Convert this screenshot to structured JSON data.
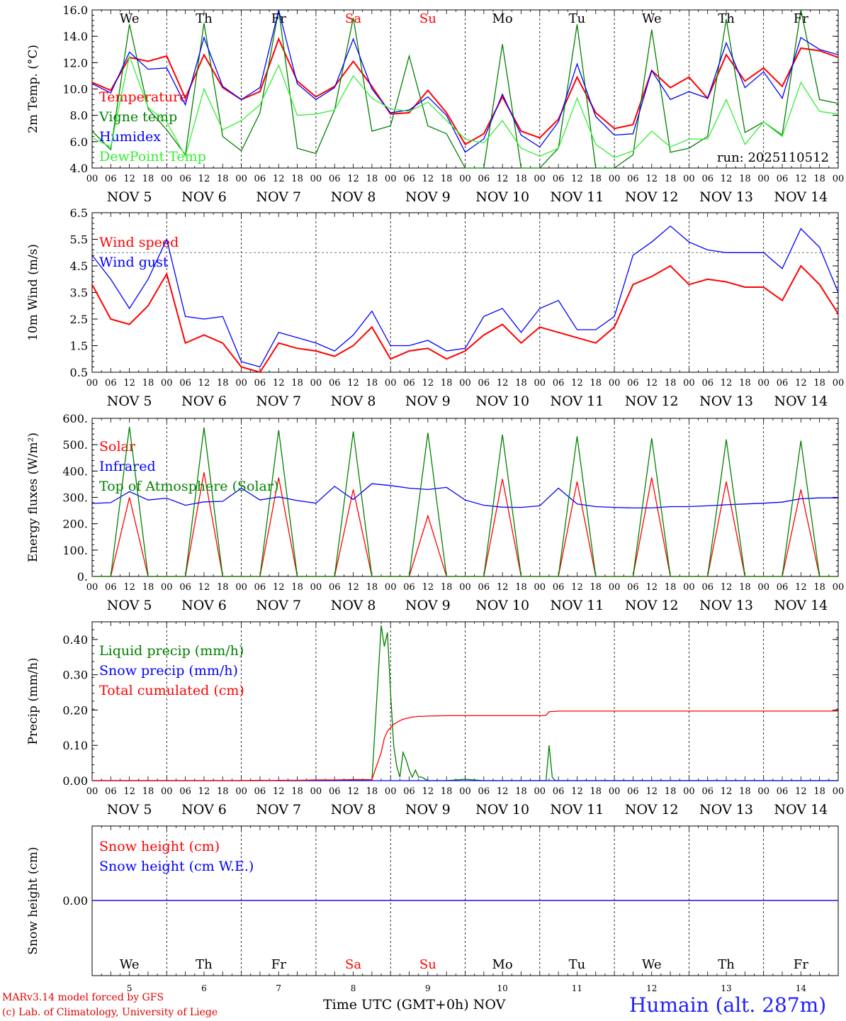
{
  "chart_data": [
    {
      "type": "line",
      "ylabel": "2m Temp. (°C)",
      "ylim": [
        4.0,
        16.0
      ],
      "yticks": [
        "4.0",
        "6.0",
        "8.0",
        "10.0",
        "12.0",
        "14.0",
        "16.0"
      ],
      "annotation": "run: 2025110512",
      "x": [
        0,
        6,
        12,
        18,
        24,
        30,
        36,
        42,
        48,
        54,
        60,
        66,
        72,
        78,
        84,
        90,
        96,
        102,
        108,
        114,
        120,
        126,
        132,
        138,
        144,
        150,
        156,
        162,
        168,
        174,
        180,
        186,
        192,
        198,
        204,
        210,
        216,
        222,
        228,
        234,
        240
      ],
      "series": [
        {
          "name": "Temperature",
          "color": "#ff0000",
          "values": [
            10.5,
            9.9,
            12.4,
            12.1,
            12.5,
            9.3,
            12.6,
            10.1,
            9.2,
            9.8,
            13.8,
            10.6,
            9.4,
            10.2,
            12.1,
            10.2,
            8.1,
            8.2,
            9.9,
            8.2,
            5.8,
            6.6,
            9.4,
            6.8,
            6.3,
            7.7,
            10.9,
            8.2,
            7.0,
            7.3,
            11.4,
            10.1,
            10.9,
            9.3,
            12.6,
            10.6,
            11.6,
            10.2,
            13.1,
            12.9,
            12.4
          ]
        },
        {
          "name": "Vigne temp",
          "color": "#008000",
          "values": [
            6.8,
            5.4,
            14.9,
            8.5,
            6.9,
            5.0,
            15.0,
            6.4,
            5.3,
            8.2,
            16.0,
            5.5,
            5.1,
            8.4,
            15.4,
            6.8,
            7.2,
            12.5,
            7.2,
            6.6,
            4.0,
            4.0,
            13.4,
            4.0,
            4.0,
            5.5,
            14.9,
            4.0,
            4.0,
            5.0,
            14.5,
            5.2,
            5.5,
            6.4,
            15.3,
            6.7,
            7.5,
            6.5,
            16.0,
            9.2,
            8.9
          ]
        },
        {
          "name": "Humidex",
          "color": "#0000ff",
          "values": [
            10.4,
            9.7,
            12.8,
            11.5,
            11.6,
            8.8,
            13.9,
            10.2,
            9.2,
            10.1,
            16.0,
            10.4,
            9.2,
            10.1,
            13.8,
            10.0,
            8.2,
            8.4,
            9.4,
            8.0,
            5.2,
            6.2,
            9.6,
            6.5,
            5.6,
            7.5,
            11.9,
            7.9,
            6.5,
            6.6,
            11.4,
            9.2,
            9.8,
            9.3,
            13.5,
            10.1,
            11.3,
            9.3,
            13.9,
            13.0,
            12.6
          ]
        },
        {
          "name": "DewPoint Temp",
          "color": "#33ee33",
          "values": [
            6.3,
            5.6,
            12.5,
            8.6,
            7.5,
            4.9,
            10.0,
            6.9,
            7.6,
            8.8,
            11.8,
            8.0,
            8.1,
            8.4,
            11.0,
            9.3,
            8.5,
            8.3,
            9.0,
            7.6,
            6.2,
            5.9,
            7.6,
            5.5,
            4.9,
            5.5,
            9.3,
            5.8,
            4.8,
            5.3,
            6.8,
            5.6,
            6.2,
            6.2,
            9.2,
            5.8,
            7.5,
            6.4,
            10.5,
            8.3,
            8.1
          ]
        }
      ]
    },
    {
      "type": "line",
      "ylabel": "10m Wind (m/s)",
      "ylim": [
        0.5,
        6.5
      ],
      "yticks": [
        "0.5",
        "1.5",
        "2.5",
        "3.5",
        "4.5",
        "5.5",
        "6.5"
      ],
      "x": [
        0,
        6,
        12,
        18,
        24,
        30,
        36,
        42,
        48,
        54,
        60,
        66,
        72,
        78,
        84,
        90,
        96,
        102,
        108,
        114,
        120,
        126,
        132,
        138,
        144,
        150,
        156,
        162,
        168,
        174,
        180,
        186,
        192,
        198,
        204,
        210,
        216,
        222,
        228,
        234,
        240
      ],
      "series": [
        {
          "name": "Wind speed",
          "color": "#ff0000",
          "values": [
            3.8,
            2.5,
            2.3,
            3.0,
            4.2,
            1.6,
            1.9,
            1.6,
            0.7,
            0.5,
            1.6,
            1.4,
            1.3,
            1.1,
            1.5,
            2.2,
            1.0,
            1.3,
            1.4,
            1.0,
            1.3,
            1.9,
            2.3,
            1.6,
            2.2,
            2.0,
            1.8,
            1.6,
            2.2,
            3.8,
            4.1,
            4.5,
            3.8,
            4.0,
            3.9,
            3.7,
            3.7,
            3.2,
            4.5,
            3.8,
            2.7
          ]
        },
        {
          "name": "Wind gust",
          "color": "#0000ff",
          "values": [
            4.9,
            4.0,
            2.9,
            4.0,
            5.5,
            2.6,
            2.5,
            2.6,
            0.9,
            0.7,
            2.0,
            1.8,
            1.6,
            1.3,
            1.9,
            2.8,
            1.5,
            1.5,
            1.7,
            1.3,
            1.4,
            2.6,
            2.9,
            2.0,
            2.9,
            3.2,
            2.1,
            2.1,
            2.6,
            4.9,
            5.4,
            6.0,
            5.4,
            5.1,
            5.0,
            5.0,
            5.0,
            4.4,
            5.9,
            5.2,
            3.5
          ]
        }
      ]
    },
    {
      "type": "line",
      "ylabel": "Energy fluxes (W/m²)",
      "ylim": [
        0,
        600
      ],
      "yticks": [
        "0.",
        "100.",
        "200.",
        "300.",
        "400.",
        "500.",
        "600."
      ],
      "x": [
        0,
        6,
        12,
        18,
        24,
        30,
        36,
        42,
        48,
        54,
        60,
        66,
        72,
        78,
        84,
        90,
        96,
        102,
        108,
        114,
        120,
        126,
        132,
        138,
        144,
        150,
        156,
        162,
        168,
        174,
        180,
        186,
        192,
        198,
        204,
        210,
        216,
        222,
        228,
        234,
        240
      ],
      "series": [
        {
          "name": "Solar",
          "color": "#ff0000",
          "values": [
            0,
            0,
            300,
            0,
            0,
            0,
            395,
            0,
            0,
            0,
            375,
            0,
            0,
            0,
            330,
            0,
            0,
            0,
            230,
            0,
            0,
            0,
            370,
            0,
            0,
            0,
            360,
            0,
            0,
            0,
            375,
            0,
            0,
            0,
            360,
            0,
            0,
            0,
            330,
            0,
            0
          ]
        },
        {
          "name": "Infrared",
          "color": "#0000ff",
          "values": [
            277,
            280,
            322,
            290,
            297,
            270,
            283,
            285,
            335,
            290,
            302,
            288,
            278,
            342,
            292,
            352,
            345,
            335,
            330,
            338,
            290,
            270,
            263,
            262,
            268,
            335,
            275,
            265,
            262,
            260,
            260,
            265,
            265,
            268,
            272,
            275,
            278,
            282,
            295,
            298,
            298
          ]
        },
        {
          "name": "Top of Atmosphere (Solar)",
          "color": "#008000",
          "values": [
            0,
            0,
            568,
            0,
            0,
            0,
            565,
            0,
            0,
            0,
            555,
            0,
            0,
            0,
            550,
            0,
            0,
            0,
            545,
            0,
            0,
            0,
            538,
            0,
            0,
            0,
            532,
            0,
            0,
            0,
            525,
            0,
            0,
            0,
            520,
            0,
            0,
            0,
            515,
            0,
            0
          ]
        }
      ]
    },
    {
      "type": "line",
      "ylabel": "Precip (mm/h)",
      "ylim": [
        0,
        0.45
      ],
      "yticks": [
        "0.00",
        "0.10",
        "0.20",
        "0.30",
        "0.40"
      ],
      "x": [
        0,
        6,
        12,
        18,
        24,
        30,
        36,
        42,
        48,
        54,
        60,
        66,
        72,
        78,
        84,
        90,
        93,
        94,
        95,
        96,
        97,
        98,
        99,
        100,
        101,
        102,
        103,
        104,
        105,
        106,
        108,
        114,
        120,
        126,
        132,
        138,
        144,
        146,
        147,
        148,
        149,
        150,
        156,
        162,
        168,
        174,
        180,
        186,
        192,
        198,
        204,
        210,
        216,
        222,
        228,
        234,
        240
      ],
      "series": [
        {
          "name": "Liquid precip (mm/h)",
          "color": "#008000",
          "values": [
            0,
            0,
            0,
            0,
            0,
            0,
            0,
            0,
            0,
            0.001,
            0,
            0,
            0,
            0,
            0.002,
            0,
            0.44,
            0.38,
            0.42,
            0.25,
            0.1,
            0.04,
            0.01,
            0.08,
            0.06,
            0.03,
            0.01,
            0.03,
            0.01,
            0.01,
            0.0,
            0.0,
            0.004,
            0,
            0,
            0,
            0,
            0,
            0.1,
            0.01,
            0.0,
            0,
            0,
            0,
            0,
            0,
            0,
            0,
            0,
            0,
            0,
            0,
            0,
            0,
            0,
            0,
            0
          ]
        },
        {
          "name": "Snow precip (mm/h)",
          "color": "#0000ff",
          "values": [
            0,
            0,
            0,
            0,
            0,
            0,
            0,
            0,
            0,
            0,
            0,
            0,
            0,
            0,
            0,
            0,
            0,
            0,
            0,
            0,
            0,
            0,
            0,
            0,
            0,
            0,
            0,
            0,
            0,
            0,
            0,
            0,
            0,
            0,
            0,
            0,
            0,
            0,
            0,
            0,
            0,
            0,
            0,
            0,
            0,
            0,
            0,
            0,
            0,
            0,
            0,
            0,
            0,
            0,
            0,
            0,
            0
          ]
        },
        {
          "name": "Total cumulated (cm)",
          "color": "#ff0000",
          "values": [
            0,
            0,
            0,
            0,
            0,
            0,
            0,
            0,
            0,
            0,
            0.001,
            0.001,
            0.002,
            0.002,
            0.003,
            0.003,
            0.08,
            0.12,
            0.14,
            0.15,
            0.16,
            0.165,
            0.17,
            0.174,
            0.176,
            0.178,
            0.18,
            0.181,
            0.182,
            0.182,
            0.183,
            0.184,
            0.184,
            0.184,
            0.184,
            0.184,
            0.184,
            0.185,
            0.195,
            0.196,
            0.196,
            0.197,
            0.197,
            0.197,
            0.197,
            0.197,
            0.197,
            0.197,
            0.197,
            0.197,
            0.197,
            0.197,
            0.197,
            0.197,
            0.197,
            0.197,
            0.197
          ]
        }
      ]
    },
    {
      "type": "line",
      "ylabel": "Snow height (cm)",
      "ylim": [
        -0.02,
        0.02
      ],
      "yticks": [
        "0.00"
      ],
      "x": [
        0,
        240
      ],
      "series": [
        {
          "name": "Snow height (cm)",
          "color": "#ff0000",
          "values": [
            0,
            0
          ]
        },
        {
          "name": "Snow height (cm W.E.)",
          "color": "#0000ff",
          "values": [
            0,
            0
          ]
        }
      ]
    }
  ],
  "axes": {
    "hour_ticks": [
      "00",
      "06",
      "12",
      "18"
    ],
    "end_tick": "00",
    "dates": [
      "NOV  5",
      "NOV  6",
      "NOV  7",
      "NOV  8",
      "NOV  9",
      "NOV 10",
      "NOV 11",
      "NOV 12",
      "NOV 13",
      "NOV 14"
    ],
    "days": [
      {
        "label": "We",
        "color": "#000000"
      },
      {
        "label": "Th",
        "color": "#000000"
      },
      {
        "label": "Fr",
        "color": "#000000"
      },
      {
        "label": "Sa",
        "color": "#ff0000"
      },
      {
        "label": "Su",
        "color": "#ff0000"
      },
      {
        "label": "Mo",
        "color": "#000000"
      },
      {
        "label": "Tu",
        "color": "#000000"
      },
      {
        "label": "We",
        "color": "#000000"
      },
      {
        "label": "Th",
        "color": "#000000"
      },
      {
        "label": "Fr",
        "color": "#000000"
      }
    ],
    "day_numbers": [
      "5",
      "6",
      "7",
      "8",
      "9",
      "10",
      "11",
      "12",
      "13",
      "14"
    ],
    "month": "NOV",
    "wind_reference": 5.0
  },
  "footer": {
    "credit_line1": "MARv3.14 model forced by GFS",
    "credit_line2": "(c) Lab. of Climatology, University of Liege",
    "x_title": "Time UTC (GMT+0h)",
    "station": "Humain (alt. 287m)"
  }
}
